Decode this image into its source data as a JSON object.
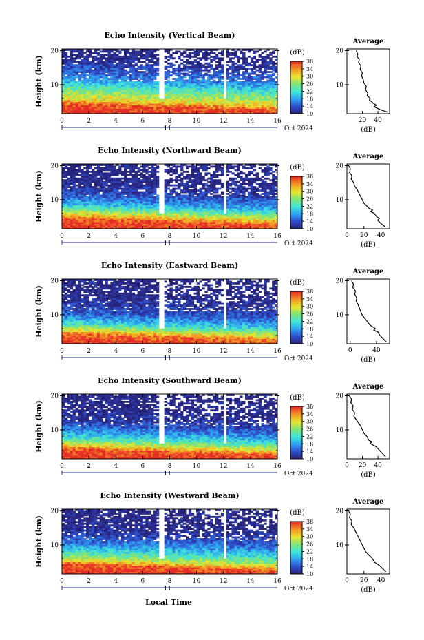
{
  "figure": {
    "xlabel": "Local Time",
    "date_label": "Oct 2024",
    "day_label": "11",
    "colorbar_unit": "(dB)",
    "avg_title": "Average",
    "avg_xlabel": "(dB)",
    "ylabel": "Height (km)"
  },
  "chart_data": [
    {
      "type": "heatmap",
      "title": "Echo Intensity (Vertical Beam)",
      "xlabel": "",
      "ylabel": "Height (km)",
      "x_ticks": [
        0,
        2,
        4,
        6,
        8,
        10,
        12,
        14,
        16
      ],
      "xlim": [
        0,
        16
      ],
      "y_ticks": [
        10,
        20
      ],
      "ylim": [
        1.5,
        20.5
      ],
      "colorbar": {
        "label": "(dB)",
        "ticks": [
          10,
          14,
          18,
          22,
          26,
          30,
          34,
          38
        ],
        "range": [
          10,
          38
        ]
      },
      "layers": [
        {
          "h": 2.5,
          "v": 38
        },
        {
          "h": 4.5,
          "v": 36
        },
        {
          "h": 6,
          "v": 30
        },
        {
          "h": 7.5,
          "v": 27
        },
        {
          "h": 9,
          "v": 24
        },
        {
          "h": 11,
          "v": 19
        },
        {
          "h": 13,
          "v": 15
        },
        {
          "h": 15,
          "v": 14
        },
        {
          "h": 17,
          "v": 11
        },
        {
          "h": 19,
          "v": 10
        }
      ],
      "white_gaps": [
        7.4,
        12.1
      ],
      "average": {
        "xlabel": "(dB)",
        "ylabel": "",
        "xlim": [
          0,
          55
        ],
        "x_ticks": [
          20,
          40
        ],
        "y_ticks": [
          10,
          20
        ],
        "ylim": [
          1.5,
          20.5
        ],
        "x": [
          12,
          14,
          13,
          16,
          15,
          18,
          17,
          20,
          19,
          21,
          22,
          25,
          24,
          27,
          26,
          30,
          29,
          32,
          34,
          38,
          35,
          40,
          45,
          52
        ],
        "y": [
          20,
          19,
          18.2,
          17.5,
          16.5,
          15.5,
          14.5,
          13.5,
          12.5,
          11.5,
          10.5,
          9.5,
          8.5,
          7.5,
          6.8,
          6,
          5.5,
          5,
          4.5,
          4,
          3.5,
          3,
          2.5,
          2
        ]
      }
    },
    {
      "type": "heatmap",
      "title": "Echo Intensity (Northward Beam)",
      "xlabel": "",
      "ylabel": "Height (km)",
      "x_ticks": [
        0,
        2,
        4,
        6,
        8,
        10,
        12,
        14,
        16
      ],
      "xlim": [
        0,
        16
      ],
      "y_ticks": [
        10,
        20
      ],
      "ylim": [
        1.5,
        20.5
      ],
      "colorbar": {
        "label": "(dB)",
        "ticks": [
          10,
          14,
          18,
          22,
          26,
          30,
          34,
          38
        ],
        "range": [
          10,
          38
        ]
      },
      "layers": [
        {
          "h": 2.5,
          "v": 38
        },
        {
          "h": 4.5,
          "v": 36
        },
        {
          "h": 6,
          "v": 30
        },
        {
          "h": 7.5,
          "v": 24
        },
        {
          "h": 9,
          "v": 19
        },
        {
          "h": 11,
          "v": 15
        },
        {
          "h": 13,
          "v": 12
        },
        {
          "h": 15,
          "v": 11
        },
        {
          "h": 17,
          "v": 10
        },
        {
          "h": 19,
          "v": 10
        }
      ],
      "white_gaps": [
        7.4,
        12.1
      ],
      "average": {
        "xlabel": "(dB)",
        "ylabel": "",
        "xlim": [
          0,
          50
        ],
        "x_ticks": [
          0,
          20,
          40
        ],
        "y_ticks": [
          10,
          20
        ],
        "ylim": [
          1.5,
          20.5
        ],
        "x": [
          2,
          4,
          3,
          6,
          5,
          8,
          9,
          12,
          14,
          16,
          18,
          20,
          24,
          26,
          30,
          28,
          32,
          35,
          38,
          36,
          40,
          45
        ],
        "y": [
          20,
          19,
          18,
          17,
          16,
          15,
          14,
          13,
          12,
          11,
          10,
          9,
          8,
          7.5,
          7,
          6.5,
          6,
          5,
          4.5,
          4,
          3,
          2
        ]
      }
    },
    {
      "type": "heatmap",
      "title": "Echo Intensity (Eastward Beam)",
      "xlabel": "",
      "ylabel": "Height (km)",
      "x_ticks": [
        0,
        2,
        4,
        6,
        8,
        10,
        12,
        14,
        16
      ],
      "xlim": [
        0,
        16
      ],
      "y_ticks": [
        10,
        20
      ],
      "ylim": [
        1.5,
        20.5
      ],
      "colorbar": {
        "label": "(dB)",
        "ticks": [
          10,
          14,
          18,
          22,
          26,
          30,
          34,
          38
        ],
        "range": [
          10,
          38
        ]
      },
      "layers": [
        {
          "h": 2.5,
          "v": 38
        },
        {
          "h": 4.5,
          "v": 35
        },
        {
          "h": 6,
          "v": 28
        },
        {
          "h": 7.5,
          "v": 22
        },
        {
          "h": 9,
          "v": 18
        },
        {
          "h": 11,
          "v": 14
        },
        {
          "h": 13,
          "v": 12
        },
        {
          "h": 15,
          "v": 11
        },
        {
          "h": 17,
          "v": 10
        },
        {
          "h": 19,
          "v": 10
        }
      ],
      "white_gaps": [
        7.4,
        12.1
      ],
      "average": {
        "xlabel": "(dB)",
        "ylabel": "",
        "xlim": [
          -5,
          60
        ],
        "x_ticks": [
          0,
          40
        ],
        "y_ticks": [
          10,
          20
        ],
        "ylim": [
          1.5,
          20.5
        ],
        "x": [
          2,
          5,
          4,
          8,
          7,
          10,
          9,
          12,
          14,
          16,
          18,
          22,
          26,
          30,
          34,
          38,
          36,
          42,
          45,
          50,
          55
        ],
        "y": [
          20,
          19,
          18,
          17,
          16,
          15,
          14,
          13,
          12,
          11,
          10,
          9,
          8,
          7,
          6.5,
          6,
          5.5,
          5,
          4,
          3,
          2
        ]
      }
    },
    {
      "type": "heatmap",
      "title": "Echo Intensity (Southward Beam)",
      "xlabel": "",
      "ylabel": "Height (km)",
      "x_ticks": [
        0,
        2,
        4,
        6,
        8,
        10,
        12,
        14,
        16
      ],
      "xlim": [
        0,
        16
      ],
      "y_ticks": [
        10,
        20
      ],
      "ylim": [
        1.5,
        20.5
      ],
      "colorbar": {
        "label": "(dB)",
        "ticks": [
          10,
          14,
          18,
          22,
          26,
          30,
          34,
          38
        ],
        "range": [
          10,
          38
        ]
      },
      "layers": [
        {
          "h": 2.5,
          "v": 38
        },
        {
          "h": 4.5,
          "v": 36
        },
        {
          "h": 6,
          "v": 29
        },
        {
          "h": 7.5,
          "v": 23
        },
        {
          "h": 9,
          "v": 19
        },
        {
          "h": 11,
          "v": 15
        },
        {
          "h": 13,
          "v": 12
        },
        {
          "h": 15,
          "v": 11
        },
        {
          "h": 17,
          "v": 10
        },
        {
          "h": 19,
          "v": 10
        }
      ],
      "white_gaps": [
        7.4,
        12.1
      ],
      "average": {
        "xlabel": "(dB)",
        "ylabel": "",
        "xlim": [
          0,
          55
        ],
        "x_ticks": [
          0,
          20,
          40
        ],
        "y_ticks": [
          10,
          20
        ],
        "ylim": [
          1.5,
          20.5
        ],
        "x": [
          3,
          6,
          5,
          8,
          7,
          10,
          9,
          12,
          15,
          18,
          20,
          22,
          26,
          28,
          32,
          30,
          34,
          38,
          42,
          46,
          50
        ],
        "y": [
          20,
          19,
          18,
          17,
          16,
          15,
          14,
          13,
          12,
          11,
          10,
          9,
          8,
          7,
          6.5,
          6,
          5.5,
          5,
          4,
          3,
          2
        ]
      }
    },
    {
      "type": "heatmap",
      "title": "Echo Intensity (Westward Beam)",
      "xlabel": "Local Time",
      "ylabel": "Height (km)",
      "x_ticks": [
        0,
        2,
        4,
        6,
        8,
        10,
        12,
        14,
        16
      ],
      "xlim": [
        0,
        16
      ],
      "y_ticks": [
        10,
        20
      ],
      "ylim": [
        1.5,
        20.5
      ],
      "colorbar": {
        "label": "(dB)",
        "ticks": [
          10,
          14,
          18,
          22,
          26,
          30,
          34,
          38
        ],
        "range": [
          10,
          38
        ]
      },
      "layers": [
        {
          "h": 2.5,
          "v": 38
        },
        {
          "h": 4.5,
          "v": 36
        },
        {
          "h": 6,
          "v": 28
        },
        {
          "h": 7.5,
          "v": 24
        },
        {
          "h": 9,
          "v": 20
        },
        {
          "h": 11,
          "v": 16
        },
        {
          "h": 13,
          "v": 13
        },
        {
          "h": 15,
          "v": 11
        },
        {
          "h": 17,
          "v": 10
        },
        {
          "h": 19,
          "v": 10
        }
      ],
      "white_gaps": [
        7.4,
        12.1
      ],
      "average": {
        "xlabel": "(dB)",
        "ylabel": "",
        "xlim": [
          0,
          50
        ],
        "x_ticks": [
          0,
          20,
          40
        ],
        "y_ticks": [
          10,
          20
        ],
        "ylim": [
          1.5,
          20.5
        ],
        "x": [
          2,
          4,
          3,
          6,
          5,
          8,
          10,
          12,
          14,
          16,
          18,
          20,
          22,
          26,
          28,
          30,
          32,
          35,
          38,
          42,
          46
        ],
        "y": [
          20,
          19,
          18,
          17,
          16,
          15,
          14,
          13,
          12,
          11,
          10,
          9,
          8,
          7,
          6.5,
          6,
          5,
          4.5,
          4,
          3,
          2
        ]
      }
    }
  ]
}
